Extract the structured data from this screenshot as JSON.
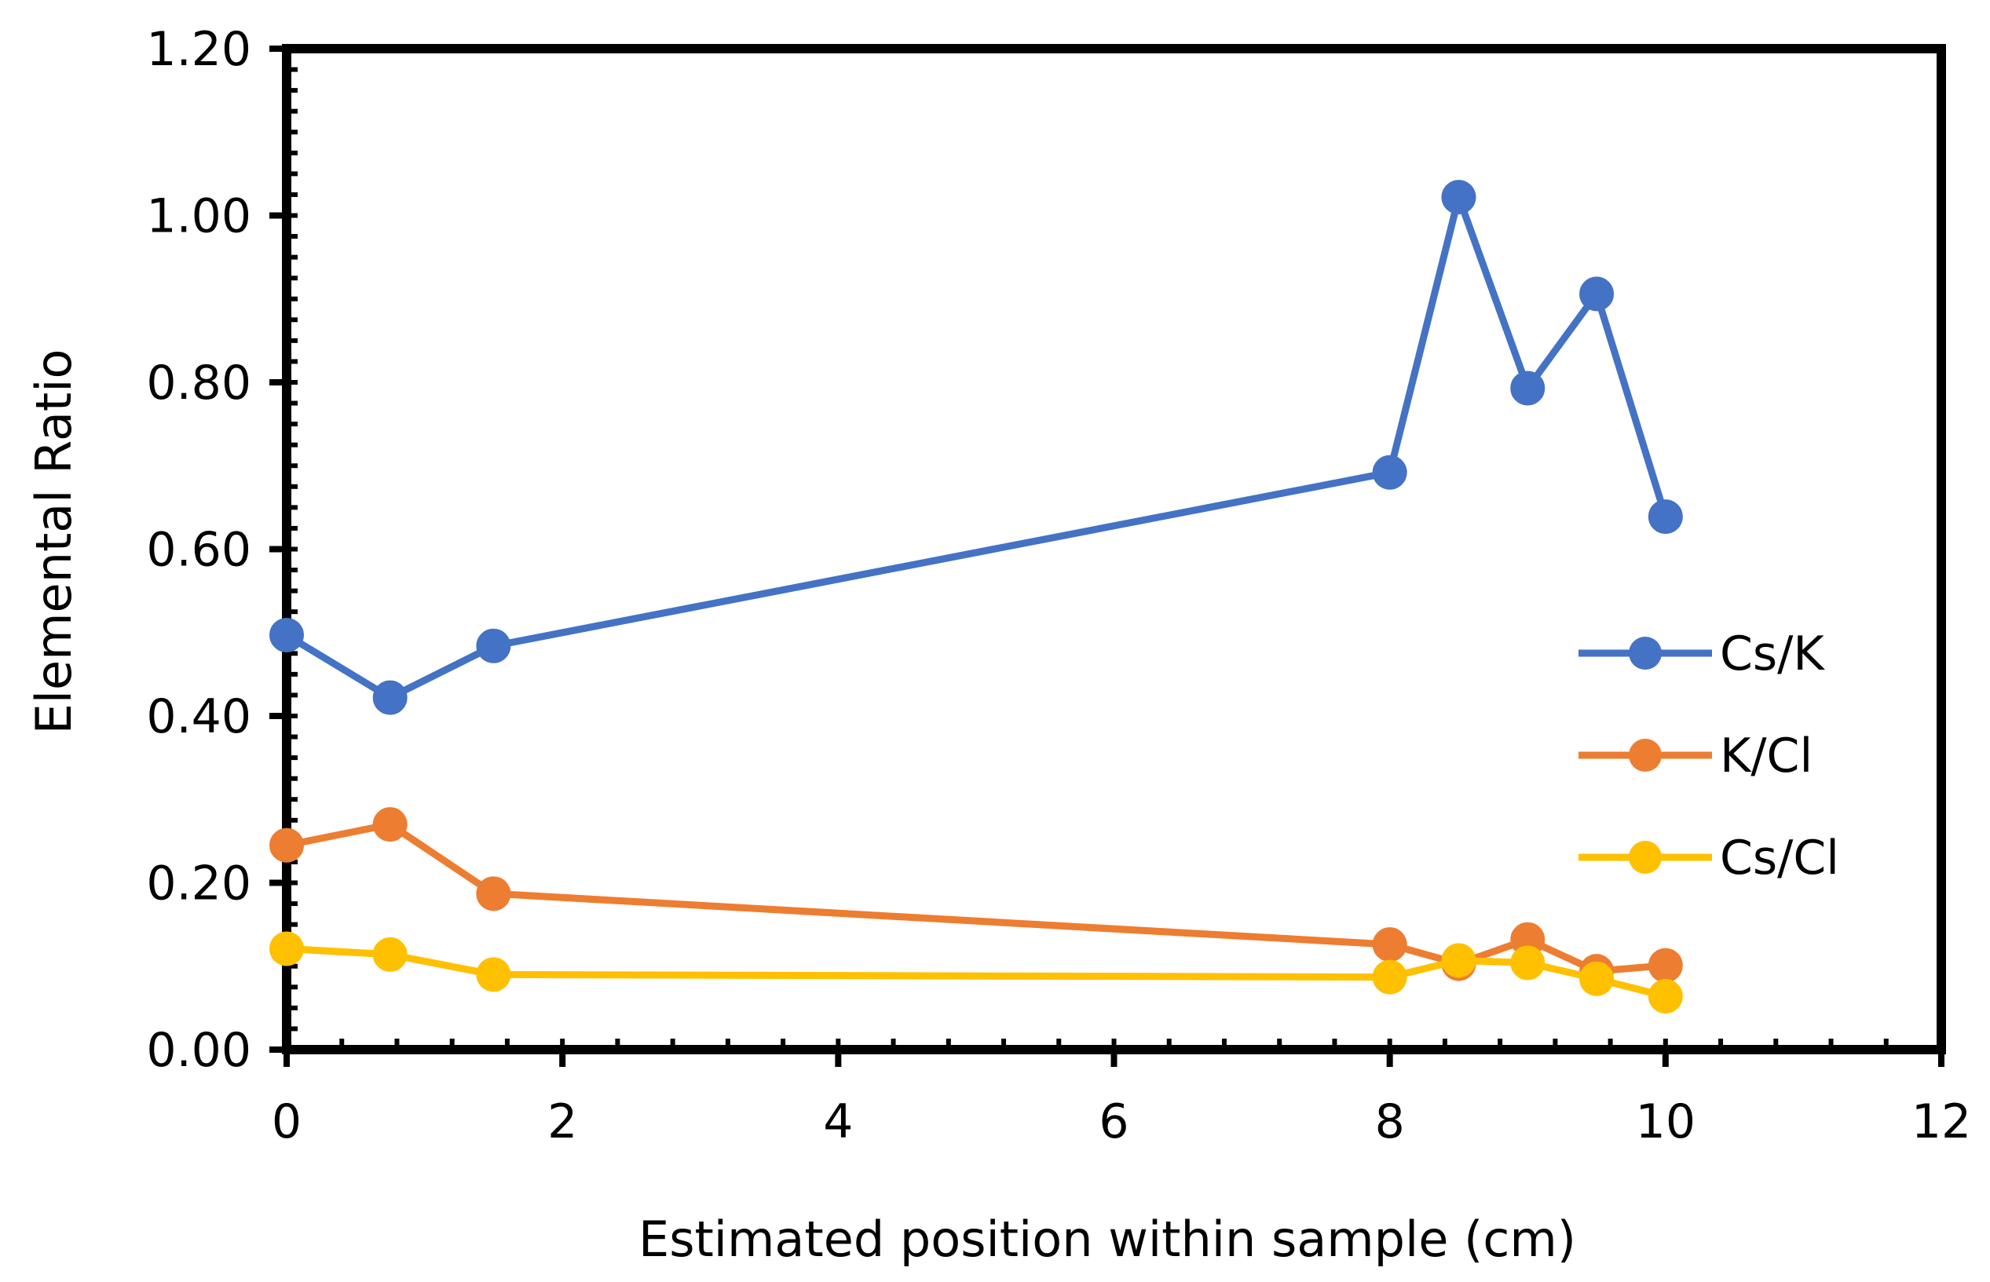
{
  "chart_data": {
    "type": "line",
    "title": "",
    "xlabel": "Estimated position within sample (cm)",
    "ylabel": "Elemental Ratio",
    "xlim": [
      0,
      12
    ],
    "ylim": [
      0,
      1.2
    ],
    "x_ticks": [
      "0",
      "2",
      "4",
      "6",
      "8",
      "10",
      "12"
    ],
    "y_ticks": [
      "0.00",
      "0.20",
      "0.40",
      "0.60",
      "0.80",
      "1.00",
      "1.20"
    ],
    "legend_position": "right",
    "x": [
      0,
      0.75,
      1.5,
      8,
      8.5,
      9,
      9.5,
      10
    ],
    "series": [
      {
        "name": "Cs/K",
        "color": "#4472C4",
        "values": [
          0.497,
          0.422,
          0.484,
          0.692,
          1.022,
          0.793,
          0.906,
          0.639
        ]
      },
      {
        "name": "K/Cl",
        "color": "#ED7D31",
        "values": [
          0.245,
          0.27,
          0.187,
          0.126,
          0.103,
          0.132,
          0.094,
          0.101
        ]
      },
      {
        "name": "Cs/Cl",
        "color": "#FFC000",
        "values": [
          0.121,
          0.114,
          0.09,
          0.087,
          0.107,
          0.104,
          0.085,
          0.064
        ]
      }
    ]
  }
}
